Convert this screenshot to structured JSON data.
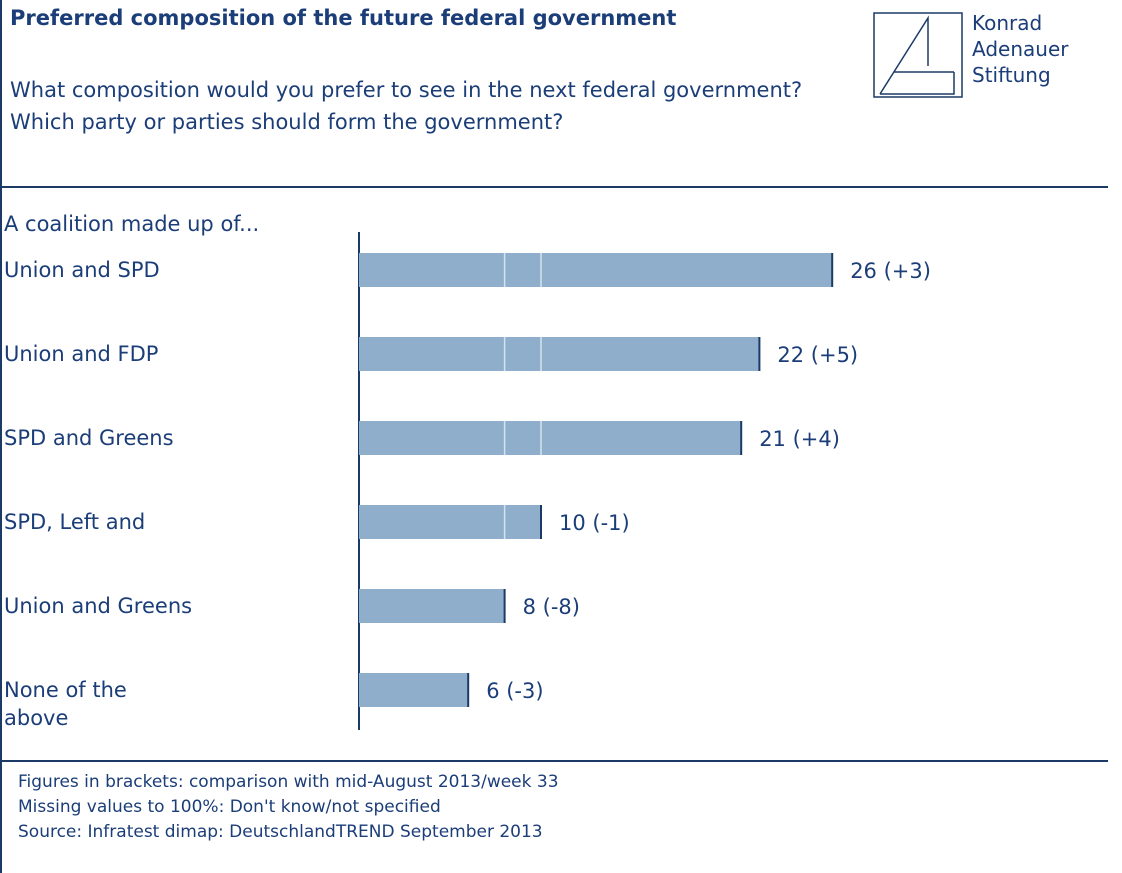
{
  "header": {
    "title": "Preferred composition of the future federal government",
    "subtitle": "What composition would you prefer to see in the next federal government? Which party or parties should form the government?"
  },
  "logo": {
    "line1": "Konrad",
    "line2": "Adenauer",
    "line3": "Stiftung"
  },
  "chart_data": {
    "type": "bar",
    "orientation": "horizontal",
    "group_label": "A coalition made up of...",
    "categories": [
      "Union and SPD",
      "Union and FDP",
      "SPD and Greens",
      "SPD, Left and",
      "Union and Greens",
      "None of the above"
    ],
    "values": [
      26,
      22,
      21,
      10,
      8,
      6
    ],
    "value_labels": [
      "26 (+3)",
      "22 (+5)",
      "21 (+4)",
      "10 (-1)",
      "8 (-8)",
      "6 (-3)"
    ],
    "changes": [
      3,
      5,
      4,
      -1,
      -8,
      -3
    ],
    "xlim": [
      0,
      30
    ],
    "grid": false,
    "legend": "none",
    "bar_color": "#8eaecb",
    "axis_color": "#1b3a66"
  },
  "footer": {
    "note1": "Figures in brackets: comparison with mid-August 2013/week 33",
    "note2": "Missing values to 100%: Don't know/not specified",
    "note3": "Source: Infratest dimap: DeutschlandTREND September 2013"
  }
}
